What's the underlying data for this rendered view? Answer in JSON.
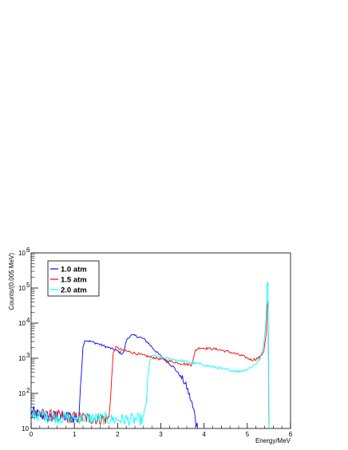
{
  "chart_data": {
    "type": "line",
    "title": "",
    "xlabel": "Energy/MeV",
    "ylabel": "Counts/(0.005 MeV)",
    "xlim": [
      0,
      6
    ],
    "ylim": [
      10,
      1000000
    ],
    "yscale": "log",
    "grid": false,
    "legend_position": "top-left",
    "x_ticks": [
      "0",
      "1",
      "2",
      "3",
      "4",
      "5",
      "6"
    ],
    "y_ticks": [
      {
        "value": 10,
        "label": "10"
      },
      {
        "value": 100,
        "label": "10",
        "exp": "2"
      },
      {
        "value": 1000,
        "label": "10",
        "exp": "3"
      },
      {
        "value": 10000,
        "label": "10",
        "exp": "4"
      },
      {
        "value": 100000,
        "label": "10",
        "exp": "5"
      },
      {
        "value": 1000000,
        "label": "10",
        "exp": "6"
      }
    ],
    "series": [
      {
        "name": "1.0 atm",
        "color": "#0000ff",
        "x": [
          0.0,
          0.2,
          0.4,
          0.6,
          0.8,
          1.0,
          1.1,
          1.15,
          1.2,
          1.25,
          1.3,
          1.5,
          1.7,
          1.9,
          2.0,
          2.1,
          2.15,
          2.2,
          2.3,
          2.4,
          2.5,
          2.6,
          2.7,
          2.9,
          3.1,
          3.3,
          3.5,
          3.6,
          3.7,
          3.8,
          3.85
        ],
        "y": [
          30,
          24,
          22,
          22,
          21,
          20,
          20,
          200,
          2200,
          3300,
          3200,
          2700,
          2200,
          1800,
          1600,
          1350,
          1500,
          3200,
          4500,
          4400,
          4000,
          3600,
          2800,
          1500,
          900,
          550,
          260,
          150,
          60,
          20,
          10
        ]
      },
      {
        "name": "1.5 atm",
        "color": "#ff0000",
        "x": [
          0.0,
          0.3,
          0.6,
          0.9,
          1.2,
          1.5,
          1.8,
          1.85,
          1.9,
          1.95,
          2.0,
          2.1,
          2.3,
          2.6,
          2.9,
          3.2,
          3.5,
          3.7,
          3.75,
          3.8,
          3.9,
          4.0,
          4.3,
          4.6,
          4.9,
          5.1,
          5.2,
          5.3,
          5.38,
          5.44,
          5.47,
          5.49,
          5.5
        ],
        "y": [
          28,
          24,
          22,
          21,
          20,
          19,
          19,
          150,
          1400,
          2000,
          2000,
          1700,
          1500,
          1200,
          1000,
          830,
          700,
          650,
          900,
          1700,
          2000,
          1950,
          1800,
          1500,
          1150,
          900,
          950,
          1100,
          1600,
          5000,
          60000,
          30000,
          10
        ]
      },
      {
        "name": "2.0 atm",
        "color": "#00ffff",
        "x": [
          0.0,
          0.4,
          0.8,
          1.2,
          1.6,
          2.0,
          2.4,
          2.6,
          2.65,
          2.7,
          2.75,
          2.8,
          3.0,
          3.3,
          3.6,
          3.9,
          4.2,
          4.5,
          4.8,
          5.0,
          5.2,
          5.3,
          5.38,
          5.44,
          5.47,
          5.49,
          5.5
        ],
        "y": [
          25,
          22,
          20,
          20,
          19,
          18,
          18,
          18,
          40,
          250,
          900,
          1200,
          1050,
          930,
          800,
          680,
          570,
          480,
          420,
          480,
          700,
          1000,
          2500,
          15000,
          400000,
          60000,
          10
        ]
      }
    ]
  }
}
